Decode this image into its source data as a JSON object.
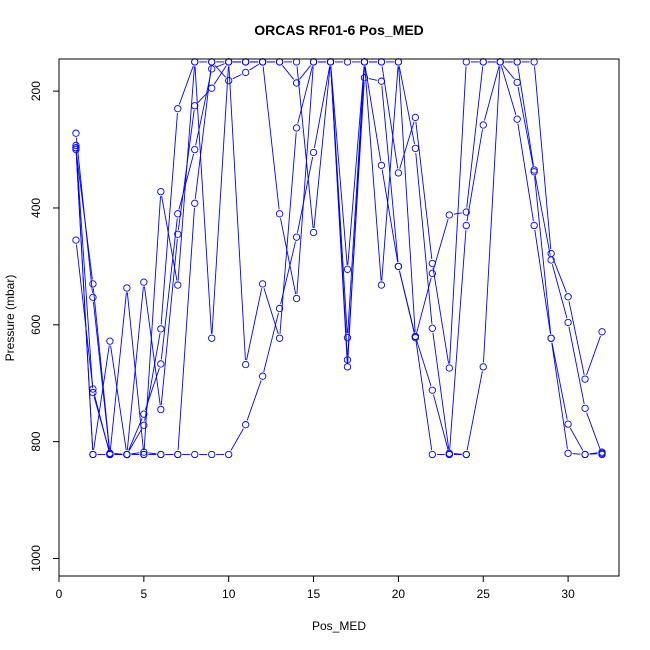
{
  "chart_data": {
    "type": "line",
    "title": "ORCAS RF01-6 Pos_MED",
    "xlabel": "Pos_MED",
    "ylabel": "Pressure (mbar)",
    "xlim": [
      0,
      33
    ],
    "ylim": [
      1030,
      145
    ],
    "y_reversed": true,
    "grid": false,
    "xticks": [
      0,
      5,
      10,
      15,
      20,
      25,
      30
    ],
    "yticks": [
      200,
      400,
      600,
      800,
      1000
    ],
    "series_color": "#0000ff",
    "series_style": "points connected by thin lines (type b)",
    "series": [
      {
        "x": [
          1,
          2,
          3,
          4,
          5,
          6,
          7,
          8,
          9,
          10,
          11,
          12,
          13,
          14,
          15,
          16,
          17,
          18,
          19,
          20,
          21,
          22,
          23,
          24,
          25,
          26,
          27,
          28,
          29,
          30,
          31,
          32
        ],
        "y": [
          297,
          822,
          822,
          822,
          818,
          822,
          822,
          822,
          822,
          822,
          771,
          688,
          572,
          450,
          305,
          150,
          505,
          150,
          327,
          500,
          620,
          822,
          822,
          822,
          672,
          150,
          150,
          150,
          478,
          552,
          693,
          612
        ]
      },
      {
        "x": [
          1,
          2,
          3,
          4,
          5,
          6,
          7,
          8,
          9,
          10,
          11,
          12,
          13,
          14,
          15,
          16,
          17,
          18,
          19,
          20,
          21,
          22,
          23,
          24
        ],
        "y": [
          297,
          822,
          628,
          822,
          772,
          607,
          230,
          150,
          623,
          150,
          668,
          530,
          623,
          263,
          150,
          150,
          672,
          150,
          532,
          150,
          298,
          606,
          820,
          822
        ]
      },
      {
        "x": [
          1,
          2,
          3,
          4,
          5,
          6,
          7,
          8,
          9,
          10,
          11,
          12,
          13,
          14,
          15,
          16,
          17,
          18,
          19,
          20,
          21,
          22,
          23,
          24,
          25,
          26,
          27,
          28,
          29,
          30,
          31,
          32
        ],
        "y": [
          455,
          710,
          822,
          537,
          822,
          372,
          532,
          150,
          150,
          150,
          150,
          150,
          150,
          186,
          150,
          150,
          622,
          150,
          150,
          150,
          620,
          712,
          822,
          430,
          258,
          150,
          150,
          335,
          489,
          596,
          743,
          822
        ]
      },
      {
        "x": [
          1,
          2,
          3,
          4,
          5,
          6,
          7,
          8,
          9,
          10,
          11,
          12,
          13,
          14,
          15,
          16,
          17,
          18,
          19,
          20,
          21,
          22,
          23,
          24,
          25,
          26,
          27,
          28,
          29,
          30,
          31,
          32
        ],
        "y": [
          272,
          553,
          822,
          822,
          527,
          745,
          445,
          225,
          195,
          150,
          150,
          150,
          410,
          555,
          150,
          150,
          660,
          177,
          183,
          500,
          622,
          512,
          412,
          407,
          150,
          150,
          185,
          338,
          623,
          770,
          822,
          818
        ]
      },
      {
        "x": [
          1,
          2,
          3,
          4,
          5,
          6,
          7,
          8,
          9,
          10,
          11,
          12
        ],
        "y": [
          293,
          716,
          820,
          822,
          753,
          667,
          410,
          300,
          162,
          150,
          150,
          150
        ]
      },
      {
        "x": [
          1,
          2,
          3,
          4,
          5,
          6,
          7,
          8,
          9,
          10,
          11,
          12,
          13,
          14,
          15,
          16,
          17,
          18,
          19,
          20,
          21,
          22,
          23,
          24,
          25,
          26,
          27,
          28,
          29,
          30,
          31,
          32
        ],
        "y": [
          300,
          530,
          820,
          822,
          822,
          822,
          822,
          392,
          150,
          182,
          168,
          150,
          150,
          150,
          442,
          150,
          150,
          150,
          150,
          340,
          245,
          495,
          674,
          150,
          150,
          150,
          248,
          430,
          623,
          820,
          822,
          820
        ]
      }
    ]
  }
}
